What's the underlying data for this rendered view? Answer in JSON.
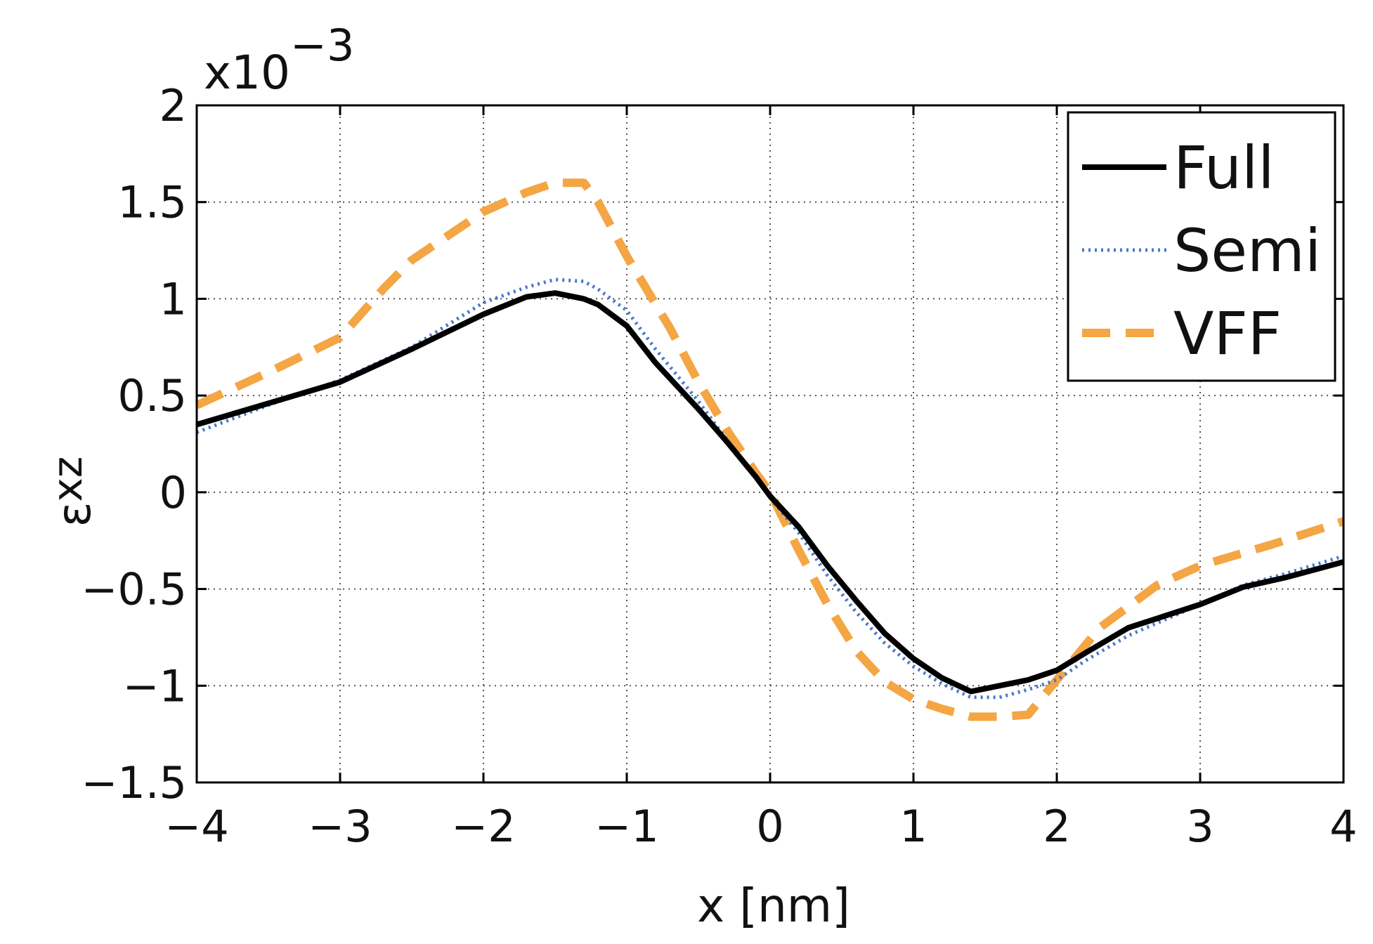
{
  "chart_data": {
    "type": "line",
    "xlabel": "x [nm]",
    "ylabel_main": "ε",
    "ylabel_sub": "xz",
    "y_multiplier_base": "x10",
    "y_multiplier_exp": "−3",
    "xlim": [
      -4,
      4
    ],
    "ylim": [
      -1.5,
      2
    ],
    "x_ticks": [
      -4,
      -3,
      -2,
      -1,
      0,
      1,
      2,
      3,
      4
    ],
    "x_tick_labels": [
      "−4",
      "−3",
      "−2",
      "−1",
      "0",
      "1",
      "2",
      "3",
      "4"
    ],
    "y_ticks": [
      -1.5,
      -1,
      -0.5,
      0,
      0.5,
      1,
      1.5,
      2
    ],
    "y_tick_labels": [
      "−1.5",
      "−1",
      "−0.5",
      "0",
      "0.5",
      "1",
      "1.5",
      "2"
    ],
    "grid": true,
    "legend_position": "top-right",
    "series": [
      {
        "name": "Full",
        "color": "#000000",
        "style": "solid",
        "points": [
          [
            -4,
            0.35
          ],
          [
            -3.5,
            0.46
          ],
          [
            -3,
            0.57
          ],
          [
            -2.5,
            0.74
          ],
          [
            -2,
            0.92
          ],
          [
            -1.7,
            1.01
          ],
          [
            -1.5,
            1.03
          ],
          [
            -1.3,
            1.0
          ],
          [
            -1.2,
            0.97
          ],
          [
            -1,
            0.86
          ],
          [
            -0.8,
            0.67
          ],
          [
            -0.5,
            0.43
          ],
          [
            -0.3,
            0.26
          ],
          [
            -0.1,
            0.08
          ],
          [
            0,
            -0.02
          ],
          [
            0.2,
            -0.18
          ],
          [
            0.4,
            -0.38
          ],
          [
            0.6,
            -0.56
          ],
          [
            0.8,
            -0.73
          ],
          [
            1,
            -0.86
          ],
          [
            1.2,
            -0.96
          ],
          [
            1.4,
            -1.03
          ],
          [
            1.6,
            -1.0
          ],
          [
            1.8,
            -0.97
          ],
          [
            2,
            -0.92
          ],
          [
            2.2,
            -0.83
          ],
          [
            2.5,
            -0.7
          ],
          [
            3,
            -0.58
          ],
          [
            3.3,
            -0.49
          ],
          [
            3.6,
            -0.44
          ],
          [
            4,
            -0.36
          ]
        ]
      },
      {
        "name": "Semi",
        "color": "#4a78c8",
        "style": "dotted",
        "points": [
          [
            -4,
            0.31
          ],
          [
            -3.5,
            0.45
          ],
          [
            -3,
            0.58
          ],
          [
            -2.5,
            0.75
          ],
          [
            -2,
            0.98
          ],
          [
            -1.7,
            1.06
          ],
          [
            -1.5,
            1.1
          ],
          [
            -1.3,
            1.09
          ],
          [
            -1.2,
            1.05
          ],
          [
            -1,
            0.94
          ],
          [
            -0.8,
            0.74
          ],
          [
            -0.5,
            0.47
          ],
          [
            -0.3,
            0.27
          ],
          [
            -0.1,
            0.08
          ],
          [
            0,
            -0.03
          ],
          [
            0.2,
            -0.21
          ],
          [
            0.4,
            -0.43
          ],
          [
            0.6,
            -0.62
          ],
          [
            0.8,
            -0.78
          ],
          [
            1,
            -0.9
          ],
          [
            1.2,
            -0.99
          ],
          [
            1.4,
            -1.06
          ],
          [
            1.6,
            -1.06
          ],
          [
            1.8,
            -1.02
          ],
          [
            2,
            -0.97
          ],
          [
            2.2,
            -0.87
          ],
          [
            2.5,
            -0.74
          ],
          [
            3,
            -0.58
          ],
          [
            3.3,
            -0.48
          ],
          [
            3.6,
            -0.42
          ],
          [
            4,
            -0.33
          ]
        ]
      },
      {
        "name": "VFF",
        "color": "#f4a544",
        "style": "dashed",
        "points": [
          [
            -4,
            0.45
          ],
          [
            -3.5,
            0.62
          ],
          [
            -3,
            0.8
          ],
          [
            -2.7,
            1.05
          ],
          [
            -2.5,
            1.2
          ],
          [
            -2,
            1.45
          ],
          [
            -1.7,
            1.55
          ],
          [
            -1.5,
            1.6
          ],
          [
            -1.3,
            1.6
          ],
          [
            -1.2,
            1.5
          ],
          [
            -1,
            1.22
          ],
          [
            -0.7,
            0.85
          ],
          [
            -0.5,
            0.57
          ],
          [
            -0.3,
            0.32
          ],
          [
            -0.1,
            0.1
          ],
          [
            0,
            0.0
          ],
          [
            0.2,
            -0.3
          ],
          [
            0.4,
            -0.58
          ],
          [
            0.6,
            -0.82
          ],
          [
            0.8,
            -0.98
          ],
          [
            1,
            -1.07
          ],
          [
            1.2,
            -1.12
          ],
          [
            1.4,
            -1.16
          ],
          [
            1.6,
            -1.16
          ],
          [
            1.8,
            -1.15
          ],
          [
            2,
            -0.97
          ],
          [
            2.3,
            -0.7
          ],
          [
            2.7,
            -0.48
          ],
          [
            3,
            -0.38
          ],
          [
            3.5,
            -0.27
          ],
          [
            4,
            -0.15
          ]
        ]
      }
    ]
  }
}
